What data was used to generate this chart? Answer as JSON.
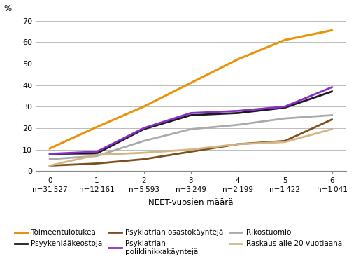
{
  "x": [
    0,
    1,
    2,
    3,
    4,
    5,
    6
  ],
  "x_labels": [
    "0\nn=31 527",
    "1\nn=12 161",
    "2\nn=5 593",
    "3\nn=3 249",
    "4\nn=2 199",
    "5\nn=1 422",
    "6\nn=1 041"
  ],
  "xlabel": "NEET-vuosien määrä",
  "ylabel": "%",
  "ylim": [
    0,
    70
  ],
  "yticks": [
    0,
    10,
    20,
    30,
    40,
    50,
    60,
    70
  ],
  "series": [
    {
      "label": "Toimeentulotukea",
      "color": "#E8930A",
      "linewidth": 2.2,
      "values": [
        10.5,
        20.5,
        30.0,
        41.0,
        52.0,
        61.0,
        65.5
      ]
    },
    {
      "label": "Psyykenlääkeostoja",
      "color": "#1A1A1A",
      "linewidth": 2.0,
      "values": [
        8.0,
        8.2,
        19.5,
        26.0,
        27.0,
        29.5,
        37.0
      ]
    },
    {
      "label": "Psykiatrian osastokäyntejä",
      "color": "#7B4F1E",
      "linewidth": 2.0,
      "values": [
        2.5,
        3.5,
        5.5,
        9.0,
        12.5,
        14.0,
        24.0
      ]
    },
    {
      "label": "Psykiatrian\npoliklinikkakäyntejä",
      "color": "#8B2FC9",
      "linewidth": 2.0,
      "values": [
        8.0,
        9.0,
        20.0,
        27.0,
        28.0,
        30.0,
        39.0
      ]
    },
    {
      "label": "Rikostuomio",
      "color": "#AAAAAA",
      "linewidth": 2.0,
      "values": [
        5.5,
        7.0,
        14.0,
        19.5,
        21.5,
        24.5,
        26.0
      ]
    },
    {
      "label": "Raskaus alle 20-vuotiaana",
      "color": "#D4B483",
      "linewidth": 2.0,
      "values": [
        2.5,
        7.5,
        8.5,
        10.0,
        12.5,
        13.5,
        19.5
      ]
    }
  ],
  "legend_order": [
    0,
    1,
    2,
    3,
    4,
    5
  ],
  "background_color": "#FFFFFF",
  "grid_color": "#BBBBBB"
}
